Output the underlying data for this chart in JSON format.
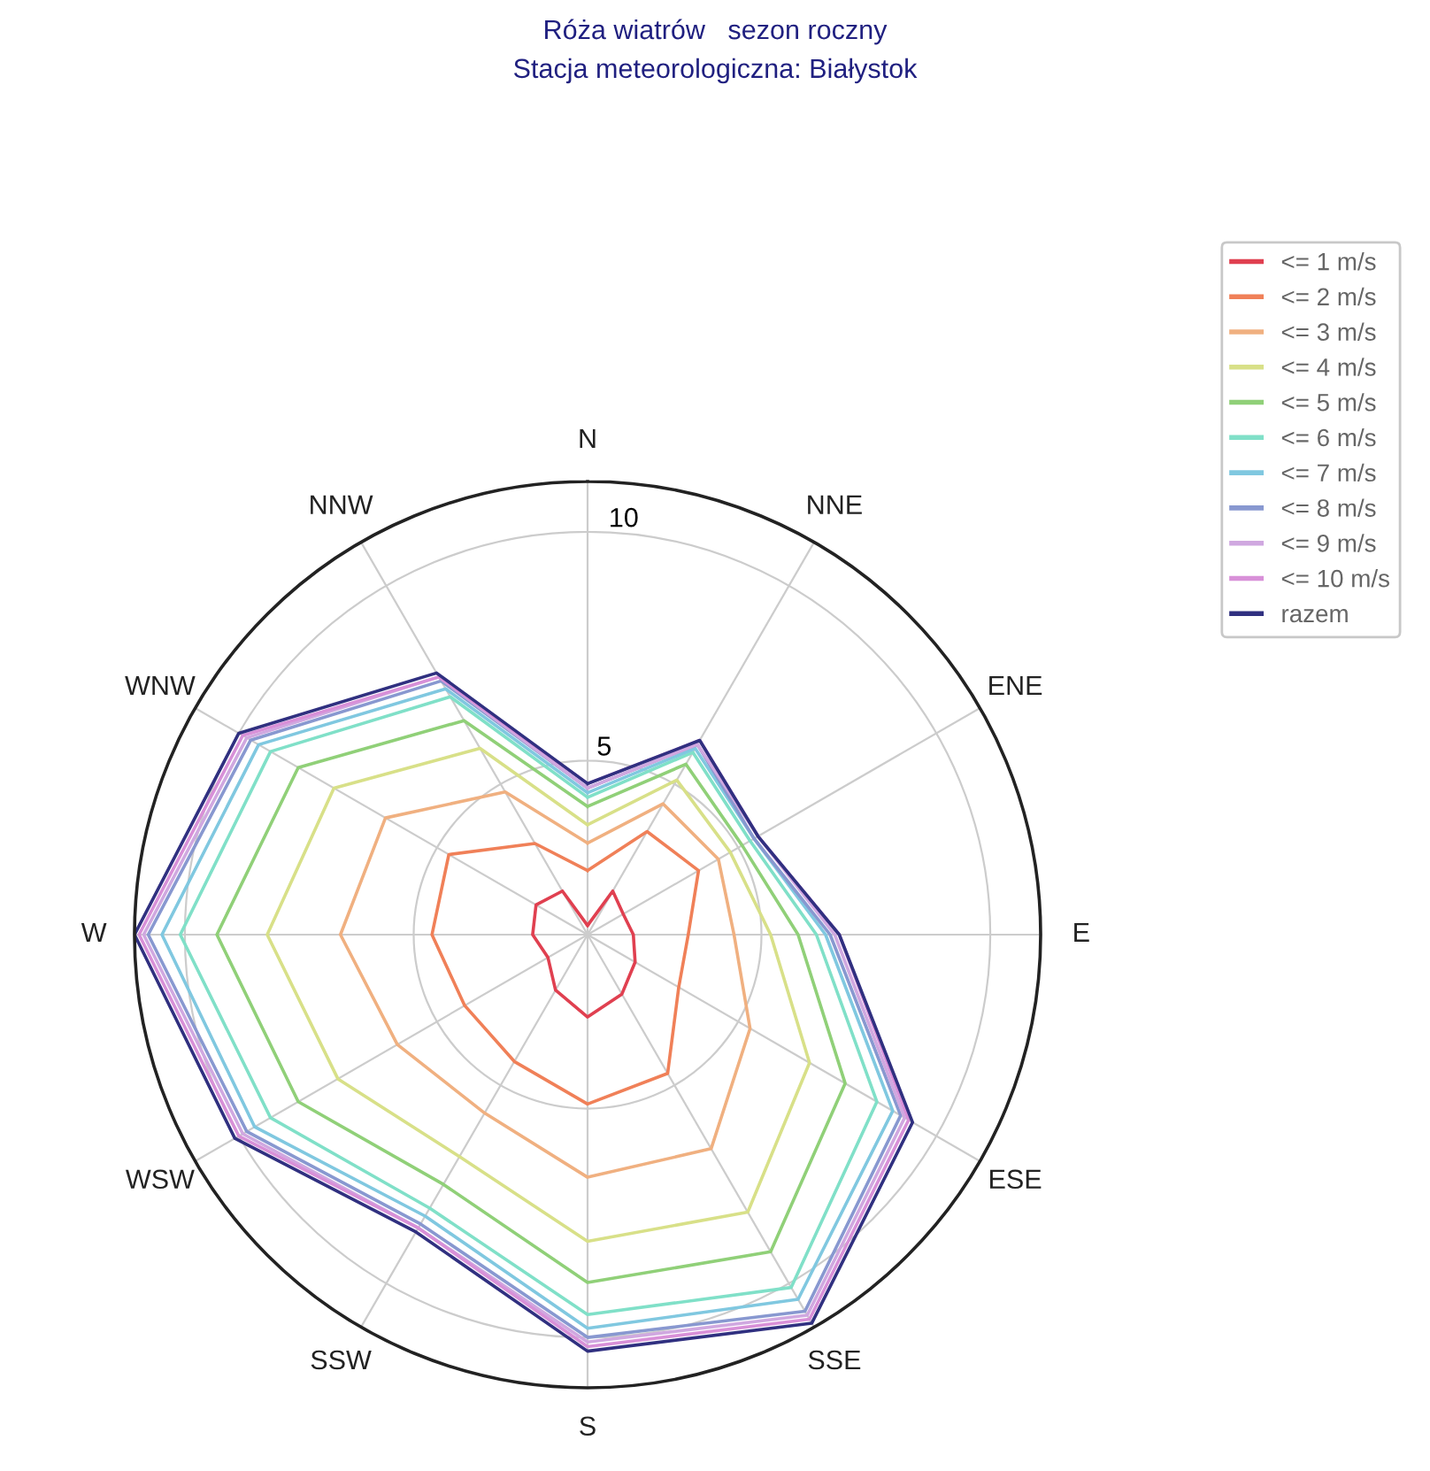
{
  "chart_data": {
    "type": "radar",
    "title": "Róża wiatrów   sezon roczny",
    "subtitle": "Stacja meteorologiczna: Białystok",
    "categories": [
      "N",
      "NNE",
      "ENE",
      "E",
      "ESE",
      "SSE",
      "S",
      "SSW",
      "WSW",
      "W",
      "WNW",
      "NNW"
    ],
    "ylim": [
      1.2,
      11.1
    ],
    "yticks": [
      5,
      10
    ],
    "grid": true,
    "legend": "top right",
    "series": [
      {
        "name": "<= 1 m/s",
        "color": "#e04050",
        "values": [
          1.4,
          2.3,
          2.1,
          2.2,
          2.4,
          2.7,
          3.0,
          2.6,
          2.2,
          2.4,
          2.5,
          2.3
        ]
      },
      {
        "name": "<= 2 m/s",
        "color": "#f08058",
        "values": [
          2.6,
          3.8,
          4.0,
          3.4,
          3.5,
          4.7,
          4.9,
          4.4,
          4.3,
          4.6,
          4.7,
          3.5
        ]
      },
      {
        "name": "<= 3 m/s",
        "color": "#f0b080",
        "values": [
          3.2,
          4.5,
          4.5,
          4.4,
          5.3,
          6.6,
          6.5,
          5.7,
          6.0,
          6.6,
          6.3,
          4.8
        ]
      },
      {
        "name": "<= 4 m/s",
        "color": "#d8e088",
        "values": [
          3.6,
          5.1,
          4.8,
          5.2,
          6.8,
          8.2,
          7.9,
          6.8,
          7.5,
          8.2,
          7.6,
          5.9
        ]
      },
      {
        "name": "<= 5 m/s",
        "color": "#90d078",
        "values": [
          4.0,
          5.5,
          5.1,
          5.8,
          7.7,
          9.2,
          8.8,
          7.5,
          8.5,
          9.3,
          8.5,
          6.6
        ]
      },
      {
        "name": "<= 6 m/s",
        "color": "#80e0c8",
        "values": [
          4.2,
          5.8,
          5.3,
          6.2,
          8.5,
          10.1,
          9.5,
          8.1,
          9.2,
          10.1,
          9.2,
          7.2
        ]
      },
      {
        "name": "<= 7 m/s",
        "color": "#80c8e0",
        "values": [
          4.3,
          5.9,
          5.4,
          6.4,
          8.9,
          10.4,
          9.8,
          8.3,
          9.6,
          10.5,
          9.5,
          7.4
        ]
      },
      {
        "name": "<= 8 m/s",
        "color": "#8898d0",
        "values": [
          4.4,
          6.0,
          5.4,
          6.5,
          9.1,
          10.7,
          10.0,
          8.5,
          9.8,
          10.8,
          9.7,
          7.6
        ]
      },
      {
        "name": "<= 9 m/s",
        "color": "#d0a8e0",
        "values": [
          4.4,
          6.0,
          5.5,
          6.6,
          9.2,
          10.8,
          10.1,
          8.6,
          9.9,
          10.9,
          9.8,
          7.7
        ]
      },
      {
        "name": "<= 10 m/s",
        "color": "#d890d8",
        "values": [
          4.5,
          6.1,
          5.5,
          6.7,
          9.3,
          10.9,
          10.2,
          8.6,
          10.0,
          11.0,
          9.9,
          7.7
        ]
      },
      {
        "name": "razem",
        "color": "#303080",
        "values": [
          4.5,
          6.1,
          5.5,
          6.7,
          9.4,
          11.0,
          10.3,
          8.7,
          10.1,
          11.1,
          10.0,
          7.8
        ]
      }
    ]
  }
}
